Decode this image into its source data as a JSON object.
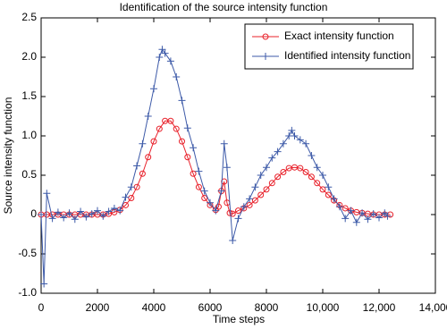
{
  "chart_data": {
    "type": "line",
    "title": "Identification of the source intensity function",
    "xlabel": "Time steps",
    "ylabel": "Source intensity function",
    "xlim": [
      0,
      14000
    ],
    "xticks": [
      0,
      2000,
      4000,
      6000,
      8000,
      {
        "value": 10000,
        "label": "10,000"
      },
      {
        "value": 12000,
        "label": "12,000"
      },
      {
        "value": 14000,
        "label": "14,000"
      }
    ],
    "ylim": [
      -1,
      2.5
    ],
    "yticks": [
      {
        "value": -1,
        "label": "-1.0"
      },
      -0.5,
      0,
      0.5,
      {
        "value": 1,
        "label": "1.0"
      },
      1.5,
      {
        "value": 2,
        "label": "2.0"
      },
      2.5
    ],
    "legend": "upper right",
    "series": [
      {
        "name": "Exact intensity function",
        "color": "#e8202a",
        "marker": "circle",
        "x": [
          0,
          200,
          400,
          600,
          800,
          1000,
          1200,
          1400,
          1600,
          1800,
          2000,
          2200,
          2400,
          2600,
          2800,
          3000,
          3200,
          3400,
          3600,
          3800,
          4000,
          4200,
          4400,
          4600,
          4800,
          5000,
          5200,
          5400,
          5600,
          5800,
          6000,
          6200,
          6300,
          6400,
          6500,
          6600,
          6700,
          6800,
          7000,
          7200,
          7400,
          7600,
          7800,
          8000,
          8200,
          8400,
          8600,
          8800,
          9000,
          9200,
          9400,
          9600,
          9800,
          10000,
          10200,
          10400,
          10600,
          10800,
          11000,
          11200,
          11400,
          11600,
          11800,
          12000,
          12200,
          12400
        ],
        "values": [
          0,
          0,
          0,
          0,
          0,
          0,
          0,
          0,
          0,
          0,
          0,
          0,
          0.01,
          0.03,
          0.06,
          0.12,
          0.21,
          0.35,
          0.52,
          0.73,
          0.93,
          1.09,
          1.19,
          1.19,
          1.09,
          0.93,
          0.73,
          0.52,
          0.35,
          0.21,
          0.12,
          0.06,
          0.1,
          0.3,
          0.42,
          0.15,
          0.02,
          0.01,
          0.05,
          0.08,
          0.12,
          0.18,
          0.25,
          0.32,
          0.4,
          0.48,
          0.54,
          0.59,
          0.6,
          0.59,
          0.54,
          0.48,
          0.4,
          0.32,
          0.25,
          0.18,
          0.12,
          0.08,
          0.05,
          0.03,
          0.02,
          0.01,
          0,
          0,
          0,
          0
        ]
      },
      {
        "name": "Identified intensity function",
        "color": "#3d5aa8",
        "marker": "plus",
        "x": [
          0,
          100,
          200,
          400,
          600,
          800,
          1000,
          1200,
          1400,
          1600,
          1800,
          2000,
          2200,
          2400,
          2600,
          2800,
          3000,
          3200,
          3400,
          3600,
          3800,
          4000,
          4200,
          4300,
          4400,
          4600,
          4800,
          5000,
          5200,
          5400,
          5600,
          5800,
          6000,
          6200,
          6400,
          6500,
          6600,
          6800,
          7000,
          7200,
          7400,
          7600,
          7800,
          8000,
          8200,
          8400,
          8600,
          8800,
          8900,
          9000,
          9200,
          9400,
          9600,
          9800,
          10000,
          10200,
          10400,
          10600,
          10800,
          11000,
          11200,
          11400,
          11600,
          11800,
          12000,
          12200,
          12300
        ],
        "values": [
          0,
          -0.88,
          0.27,
          -0.05,
          0.03,
          -0.04,
          0.02,
          -0.06,
          0.04,
          -0.03,
          0.01,
          0.05,
          -0.02,
          0.04,
          0.08,
          0.05,
          0.22,
          0.35,
          0.62,
          0.9,
          1.25,
          1.6,
          2.0,
          2.1,
          2.05,
          1.95,
          1.75,
          1.45,
          1.1,
          0.85,
          0.55,
          0.3,
          0.15,
          0.05,
          0.3,
          0.9,
          0.6,
          -0.33,
          -0.05,
          0.1,
          0.2,
          0.35,
          0.5,
          0.6,
          0.72,
          0.8,
          0.9,
          1.0,
          1.07,
          1.0,
          0.95,
          0.9,
          0.75,
          0.6,
          0.5,
          0.35,
          0.2,
          0.1,
          -0.05,
          0.05,
          -0.1,
          0.02,
          -0.06,
          0.01,
          -0.04,
          0.02,
          -0.02
        ]
      }
    ]
  }
}
